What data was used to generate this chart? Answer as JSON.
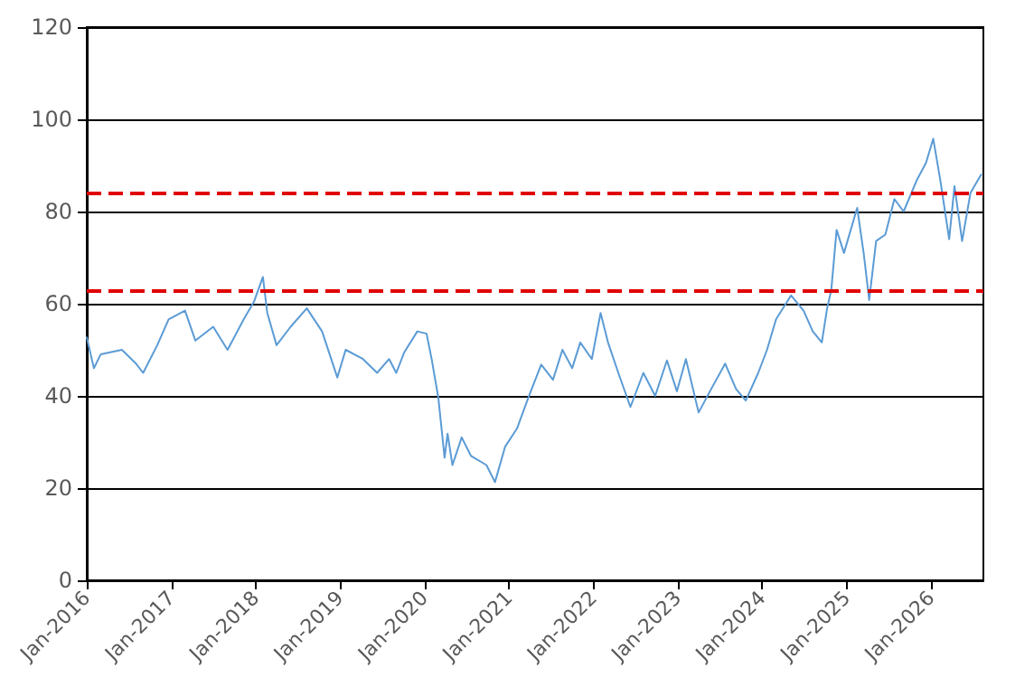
{
  "chart_data": {
    "type": "line",
    "marker": "none",
    "line_style": "solid",
    "grid": "y",
    "xlim": [
      "2016-01-01",
      "2026-08-15"
    ],
    "xticks": [
      {
        "value": "2016-01",
        "label": "Jan-2016"
      },
      {
        "value": "2017-01",
        "label": "Jan-2017"
      },
      {
        "value": "2018-01",
        "label": "Jan-2018"
      },
      {
        "value": "2019-01",
        "label": "Jan-2019"
      },
      {
        "value": "2020-01",
        "label": "Jan-2020"
      },
      {
        "value": "2021-01",
        "label": "Jan-2021"
      },
      {
        "value": "2022-01",
        "label": "Jan-2022"
      },
      {
        "value": "2023-01",
        "label": "Jan-2023"
      },
      {
        "value": "2024-01",
        "label": "Jan-2024"
      },
      {
        "value": "2025-01",
        "label": "Jan-2025"
      },
      {
        "value": "2026-01",
        "label": "Jan-2026"
      }
    ],
    "ylim": [
      0,
      120
    ],
    "yticks": [
      0,
      20,
      40,
      60,
      80,
      100,
      120
    ],
    "ref_lines": [
      {
        "axis": "y",
        "value": 84,
        "color": "#e00000",
        "line_style": "dashed"
      },
      {
        "axis": "y",
        "value": 63,
        "color": "#e00000",
        "line_style": "dashed"
      }
    ],
    "x": [
      "2016-01-01",
      "2016-02-01",
      "2016-03-01",
      "2016-06-01",
      "2016-08-01",
      "2016-09-01",
      "2016-11-01",
      "2016-12-20",
      "2017-03-01",
      "2017-04-15",
      "2017-07-01",
      "2017-09-01",
      "2017-11-10",
      "2017-12-25",
      "2018-02-01",
      "2018-02-20",
      "2018-04-01",
      "2018-06-01",
      "2018-08-10",
      "2018-10-15",
      "2018-12-20",
      "2019-01-25",
      "2019-04-10",
      "2019-06-10",
      "2019-08-01",
      "2019-09-01",
      "2019-10-05",
      "2019-12-01",
      "2020-01-10",
      "2020-02-01",
      "2020-03-01",
      "2020-03-28",
      "2020-04-10",
      "2020-05-01",
      "2020-06-10",
      "2020-07-20",
      "2020-09-25",
      "2020-11-01",
      "2020-12-15",
      "2021-02-05",
      "2021-03-25",
      "2021-05-20",
      "2021-07-10",
      "2021-08-20",
      "2021-10-01",
      "2021-11-05",
      "2021-12-25",
      "2022-02-01",
      "2022-03-05",
      "2022-04-20",
      "2022-06-10",
      "2022-08-05",
      "2022-09-25",
      "2022-11-15",
      "2022-12-28",
      "2023-02-05",
      "2023-04-01",
      "2023-05-20",
      "2023-07-25",
      "2023-09-10",
      "2023-10-22",
      "2023-12-15",
      "2024-01-22",
      "2024-03-01",
      "2024-05-05",
      "2024-06-28",
      "2024-08-07",
      "2024-09-15",
      "2024-10-08",
      "2024-10-26",
      "2024-11-18",
      "2024-12-20",
      "2025-02-15",
      "2025-03-15",
      "2025-04-08",
      "2025-05-08",
      "2025-06-17",
      "2025-07-26",
      "2025-09-04",
      "2025-10-30",
      "2025-12-10",
      "2026-01-10",
      "2026-02-10",
      "2026-03-20",
      "2026-04-12",
      "2026-05-15",
      "2026-06-20",
      "2026-08-05"
    ],
    "series": [
      {
        "color": "#5b9bd5",
        "values": [
          52.7,
          46,
          49,
          50,
          47,
          45,
          51,
          56.6,
          58.5,
          52,
          55,
          50,
          56.6,
          60.5,
          65.8,
          58,
          51,
          55,
          59,
          54,
          44,
          50,
          48,
          45,
          48,
          45,
          49.4,
          54,
          53.5,
          48,
          39.6,
          26.6,
          31.8,
          25,
          31,
          27,
          25,
          21.3,
          29,
          33,
          39.6,
          46.8,
          43.5,
          50,
          46,
          51.6,
          48,
          58,
          51.6,
          44.8,
          37.6,
          45,
          40,
          47.7,
          41,
          48,
          36.4,
          41,
          47,
          41.5,
          39,
          45,
          50,
          56.6,
          61.8,
          58.5,
          54,
          51.6,
          59,
          63,
          76,
          71,
          80.8,
          71,
          60.8,
          73.6,
          75,
          82.7,
          80,
          86.7,
          90.6,
          95.8,
          86.7,
          74,
          85.5,
          73.6,
          84,
          88
        ]
      }
    ]
  }
}
